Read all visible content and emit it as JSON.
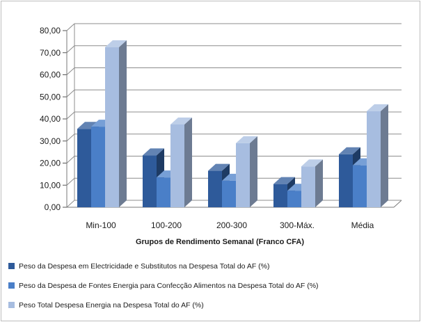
{
  "chart_data": {
    "type": "bar",
    "three_d": true,
    "categories": [
      "Min-100",
      "100-200",
      "200-300",
      "300-Máx.",
      "Média"
    ],
    "series": [
      {
        "name": "Peso da Despesa em Electricidade e Substitutos na Despesa Total do AF (%)",
        "values": [
          35.5,
          23.5,
          16.5,
          10.5,
          24.0
        ],
        "color": "#2e5a9a"
      },
      {
        "name": "Peso da Despesa de Fontes Energia para Confecção Alimentos na Despesa Total do AF (%)",
        "values": [
          36.5,
          13.5,
          12.0,
          7.5,
          19.0
        ],
        "color": "#4a7fc8"
      },
      {
        "name": "Peso Total Despesa Energia  na Despesa Total do AF (%)",
        "values": [
          72.5,
          37.5,
          29.0,
          18.5,
          43.5
        ],
        "color": "#a7bde0"
      }
    ],
    "y_tick_labels": [
      "0,00",
      "10,00",
      "20,00",
      "30,00",
      "40,00",
      "50,00",
      "60,00",
      "70,00",
      "80,00"
    ],
    "ylim": [
      0,
      80
    ],
    "xlabel": "Grupos de Rendimento Semanal (Franco CFA)",
    "ylabel": "",
    "title": "",
    "grid": true,
    "legend_position": "bottom"
  }
}
